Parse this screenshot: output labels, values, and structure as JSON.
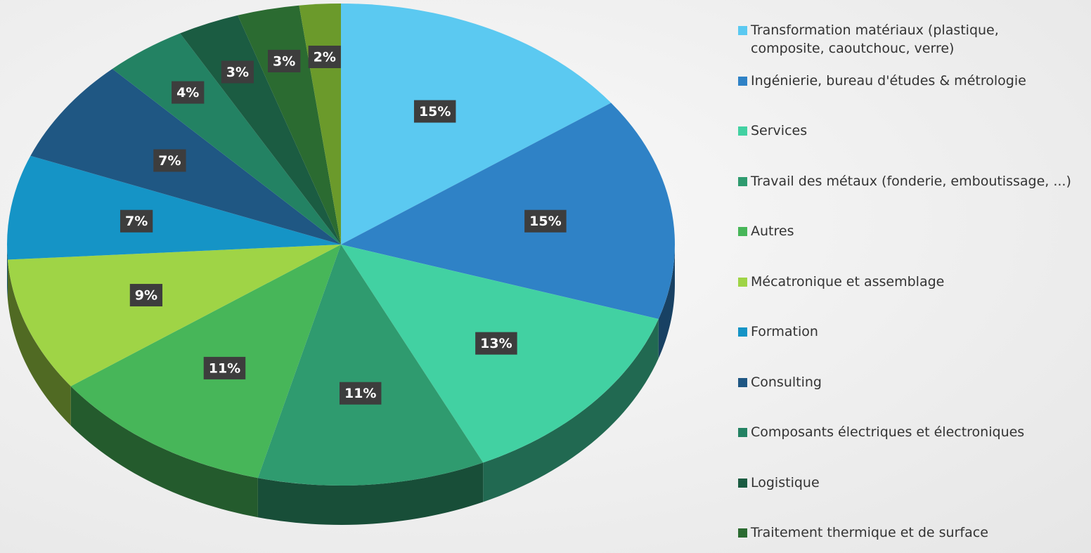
{
  "chart_data": {
    "type": "pie",
    "categories": [
      "Transformation matériaux (plastique, composite, caoutchouc, verre)",
      "Ingénierie, bureau d'études & métrologie",
      "Services",
      "Travail des métaux (fonderie, emboutissage, ...)",
      "Autres",
      "Mécatronique et assemblage",
      "Formation",
      "Consulting",
      "Composants électriques et électroniques",
      "Logistique",
      "Traitement thermique et de surface",
      null
    ],
    "values": [
      15,
      15,
      13,
      11,
      11,
      9,
      7,
      7,
      4,
      3,
      3,
      2
    ],
    "value_labels": [
      "15%",
      "15%",
      "13%",
      "11%",
      "11%",
      "9%",
      "7%",
      "7%",
      "4%",
      "3%",
      "3%",
      "2%"
    ],
    "colors": [
      "#5bc9f1",
      "#2f82c6",
      "#42d1a2",
      "#2f9b6f",
      "#47b659",
      "#9fd446",
      "#1594c6",
      "#1f5783",
      "#238263",
      "#1b5c42",
      "#2b6b31",
      "#6b9a2b"
    ],
    "legend": "right"
  }
}
